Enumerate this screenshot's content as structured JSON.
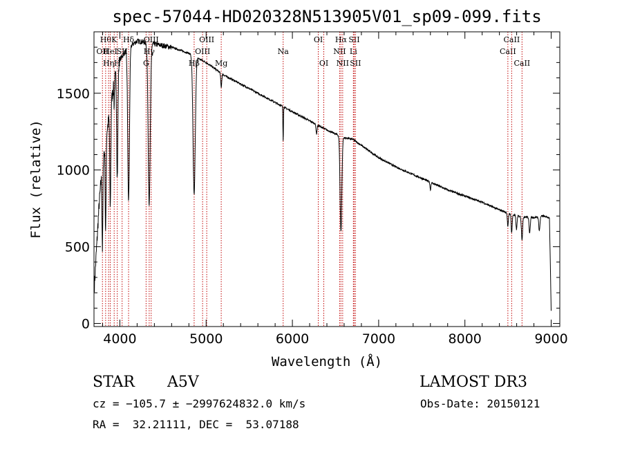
{
  "chart_data": {
    "type": "line",
    "title": "spec-57044-HD020328N513905V01_sp09-099.fits",
    "xlabel": "Wavelength (Å)",
    "ylabel": "Flux (relative)",
    "xlim": [
      3700,
      9100
    ],
    "ylim": [
      -20,
      1900
    ],
    "x_ticks": [
      4000,
      5000,
      6000,
      7000,
      8000,
      9000
    ],
    "y_ticks": [
      0,
      500,
      1000,
      1500
    ],
    "grid": false,
    "continuum": {
      "x": [
        3700,
        3760,
        3800,
        3850,
        3900,
        3950,
        4000,
        4100,
        4200,
        4300,
        4400,
        4500,
        4600,
        4700,
        4800,
        4900,
        5000,
        5100,
        5200,
        5400,
        5600,
        5800,
        6000,
        6200,
        6400,
        6600,
        6700,
        6800,
        7000,
        7200,
        7400,
        7600,
        7800,
        8000,
        8200,
        8400,
        8600,
        8800,
        8900,
        8980,
        9000
      ],
      "y": [
        200,
        780,
        1050,
        1250,
        1450,
        1620,
        1720,
        1800,
        1840,
        1830,
        1820,
        1810,
        1800,
        1780,
        1760,
        1730,
        1700,
        1660,
        1620,
        1560,
        1500,
        1440,
        1380,
        1320,
        1260,
        1210,
        1200,
        1160,
        1080,
        1020,
        970,
        920,
        870,
        830,
        790,
        740,
        700,
        690,
        700,
        690,
        80
      ]
    },
    "absorption_features": [
      {
        "center": 3798,
        "depth": 550,
        "width": 5
      },
      {
        "center": 3835,
        "depth": 600,
        "width": 5
      },
      {
        "center": 3889,
        "depth": 650,
        "width": 6
      },
      {
        "center": 3934,
        "depth": 150,
        "width": 3
      },
      {
        "center": 3970,
        "depth": 700,
        "width": 7
      },
      {
        "center": 4101,
        "depth": 1000,
        "width": 10
      },
      {
        "center": 4340,
        "depth": 1050,
        "width": 12
      },
      {
        "center": 4861,
        "depth": 900,
        "width": 13
      },
      {
        "center": 5175,
        "depth": 90,
        "width": 6
      },
      {
        "center": 5893,
        "depth": 220,
        "width": 3
      },
      {
        "center": 6280,
        "depth": 60,
        "width": 6
      },
      {
        "center": 6563,
        "depth": 620,
        "width": 10
      },
      {
        "center": 7600,
        "depth": 50,
        "width": 5
      },
      {
        "center": 8498,
        "depth": 90,
        "width": 6
      },
      {
        "center": 8542,
        "depth": 120,
        "width": 6
      },
      {
        "center": 8598,
        "depth": 90,
        "width": 6
      },
      {
        "center": 8662,
        "depth": 150,
        "width": 7
      },
      {
        "center": 8750,
        "depth": 100,
        "width": 7
      },
      {
        "center": 8863,
        "depth": 90,
        "width": 7
      }
    ],
    "line_markers": [
      {
        "wl": 3798,
        "label": "OII",
        "row": 2
      },
      {
        "wl": 3835,
        "label": "Hθ",
        "row": 1
      },
      {
        "wl": 3869,
        "label": "Hη",
        "row": 3
      },
      {
        "wl": 3889,
        "label": "HeI",
        "row": 2
      },
      {
        "wl": 3934,
        "label": "K",
        "row": 1
      },
      {
        "wl": 3970,
        "label": "H",
        "row": 3
      },
      {
        "wl": 4026,
        "label": "SII",
        "row": 2
      },
      {
        "wl": 4101,
        "label": "Hδ",
        "row": 1
      },
      {
        "wl": 4304,
        "label": "G",
        "row": 3
      },
      {
        "wl": 4340,
        "label": "Hγ",
        "row": 2
      },
      {
        "wl": 4363,
        "label": "OIII",
        "row": 1
      },
      {
        "wl": 4861,
        "label": "Hβ",
        "row": 3
      },
      {
        "wl": 4959,
        "label": "OIII",
        "row": 2
      },
      {
        "wl": 5007,
        "label": "OIII",
        "row": 1
      },
      {
        "wl": 5175,
        "label": "Mg",
        "row": 3
      },
      {
        "wl": 5893,
        "label": "Na",
        "row": 2
      },
      {
        "wl": 6300,
        "label": "OI",
        "row": 1
      },
      {
        "wl": 6364,
        "label": "OI",
        "row": 3
      },
      {
        "wl": 6548,
        "label": "NII",
        "row": 2
      },
      {
        "wl": 6563,
        "label": "Hα",
        "row": 1
      },
      {
        "wl": 6583,
        "label": "NII",
        "row": 3
      },
      {
        "wl": 6707,
        "label": "Li",
        "row": 2
      },
      {
        "wl": 6716,
        "label": "SII",
        "row": 1
      },
      {
        "wl": 6731,
        "label": "SII",
        "row": 3
      },
      {
        "wl": 8498,
        "label": "CaII",
        "row": 2
      },
      {
        "wl": 8542,
        "label": "CaII",
        "row": 1
      },
      {
        "wl": 8662,
        "label": "CaII",
        "row": 3
      }
    ]
  },
  "info": {
    "object_class": "STAR",
    "subclass": "A5V",
    "survey": "LAMOST DR3",
    "cz_line": "cz = −105.7 ± −2997624832.0 km/s",
    "obs_date": "Obs-Date: 20150121",
    "coords_line": "RA =  32.21111, DEC =  53.07188"
  }
}
